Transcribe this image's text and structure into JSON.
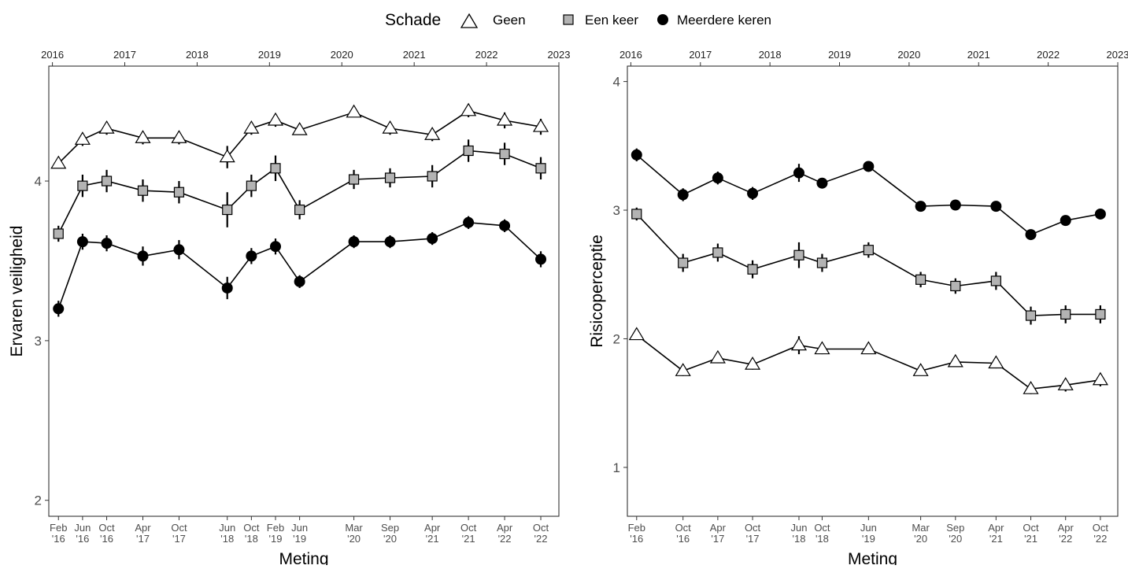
{
  "legend": {
    "title": "Schade",
    "items": [
      {
        "label": "Geen",
        "shape": "triangle"
      },
      {
        "label": "Een keer",
        "shape": "square"
      },
      {
        "label": "Meerdere keren",
        "shape": "circle"
      }
    ]
  },
  "colors": {
    "geen_fill": "#ffffff",
    "een_keer_fill": "#b3b3b3",
    "meerdere_fill": "#000000",
    "line": "#000000",
    "frame": "#333333",
    "tick_text": "#4d4d4d"
  },
  "chart_data": [
    {
      "type": "line",
      "xlabel": "Meting",
      "ylabel": "Ervaren veiligheid",
      "ylim": [
        1.9,
        4.72
      ],
      "yticks": [
        2,
        3,
        4
      ],
      "grid": false,
      "legend_position": "top",
      "top_axis": {
        "ticks": [
          "2016",
          "2017",
          "2018",
          "2019",
          "2020",
          "2021",
          "2022",
          "2023"
        ]
      },
      "categories": [
        "Feb '16",
        "Jun '16",
        "Oct '16",
        "Apr '17",
        "Oct '17",
        "Jun '18",
        "Oct '18",
        "Feb '19",
        "Jun '19",
        "Mar '20",
        "Sep '20",
        "Apr '21",
        "Oct '21",
        "Apr '22",
        "Oct '22"
      ],
      "x_dates": [
        "2016-02",
        "2016-06",
        "2016-10",
        "2017-04",
        "2017-10",
        "2018-06",
        "2018-10",
        "2019-02",
        "2019-06",
        "2020-03",
        "2020-09",
        "2021-04",
        "2021-10",
        "2022-04",
        "2022-10"
      ],
      "x_labels": [
        [
          "Feb",
          "'16"
        ],
        [
          "Jun",
          "'16"
        ],
        [
          "Oct",
          "'16"
        ],
        [
          "Apr",
          "'17"
        ],
        [
          "Oct",
          "'17"
        ],
        [
          "Jun",
          "'18"
        ],
        [
          "Oct",
          "'18"
        ],
        [
          "Feb",
          "'19"
        ],
        [
          "Jun",
          "'19"
        ],
        [
          "Mar",
          "'20"
        ],
        [
          "Sep",
          "'20"
        ],
        [
          "Apr",
          "'21"
        ],
        [
          "Oct",
          "'21"
        ],
        [
          "Apr",
          "'22"
        ],
        [
          "Oct",
          "'22"
        ]
      ],
      "series": [
        {
          "name": "Geen",
          "shape": "triangle",
          "values": [
            4.11,
            4.26,
            4.33,
            4.27,
            4.27,
            4.15,
            4.33,
            4.38,
            4.32,
            4.43,
            4.33,
            4.29,
            4.44,
            4.38,
            4.34
          ],
          "err": [
            0.03,
            0.04,
            0.04,
            0.04,
            0.04,
            0.07,
            0.04,
            0.04,
            0.03,
            0.03,
            0.04,
            0.04,
            0.04,
            0.05,
            0.05
          ]
        },
        {
          "name": "Een keer",
          "shape": "square",
          "values": [
            3.67,
            3.97,
            4.0,
            3.94,
            3.93,
            3.82,
            3.97,
            4.08,
            3.82,
            4.01,
            4.02,
            4.03,
            4.19,
            4.17,
            4.08
          ],
          "err": [
            0.05,
            0.07,
            0.07,
            0.07,
            0.07,
            0.11,
            0.07,
            0.08,
            0.06,
            0.06,
            0.06,
            0.07,
            0.07,
            0.07,
            0.07
          ]
        },
        {
          "name": "Meerdere keren",
          "shape": "circle",
          "values": [
            3.2,
            3.62,
            3.61,
            3.53,
            3.57,
            3.33,
            3.53,
            3.59,
            3.37,
            3.62,
            3.62,
            3.64,
            3.74,
            3.72,
            3.51
          ],
          "err": [
            0.05,
            0.05,
            0.05,
            0.06,
            0.06,
            0.07,
            0.05,
            0.05,
            0.04,
            0.04,
            0.04,
            0.04,
            0.04,
            0.04,
            0.05
          ]
        }
      ]
    },
    {
      "type": "line",
      "xlabel": "Meting",
      "ylabel": "Risicoperceptie",
      "ylim": [
        0.62,
        4.12
      ],
      "yticks": [
        1,
        2,
        3,
        4
      ],
      "grid": false,
      "legend_position": "top",
      "top_axis": {
        "ticks": [
          "2016",
          "2017",
          "2018",
          "2019",
          "2020",
          "2021",
          "2022",
          "2023"
        ]
      },
      "categories": [
        "Feb '16",
        "Oct '16",
        "Apr '17",
        "Oct '17",
        "Jun '18",
        "Oct '18",
        "Jun '19",
        "Mar '20",
        "Sep '20",
        "Apr '21",
        "Oct '21",
        "Apr '22",
        "Oct '22"
      ],
      "x_dates": [
        "2016-02",
        "2016-10",
        "2017-04",
        "2017-10",
        "2018-06",
        "2018-10",
        "2019-06",
        "2020-03",
        "2020-09",
        "2021-04",
        "2021-10",
        "2022-04",
        "2022-10"
      ],
      "x_labels": [
        [
          "Feb",
          "'16"
        ],
        [
          "Oct",
          "'16"
        ],
        [
          "Apr",
          "'17"
        ],
        [
          "Oct",
          "'17"
        ],
        [
          "Jun",
          "'18"
        ],
        [
          "Oct",
          "'18"
        ],
        [
          "Jun",
          "'19"
        ],
        [
          "Mar",
          "'20"
        ],
        [
          "Sep",
          "'20"
        ],
        [
          "Apr",
          "'21"
        ],
        [
          "Oct",
          "'21"
        ],
        [
          "Apr",
          "'22"
        ],
        [
          "Oct",
          "'22"
        ]
      ],
      "series": [
        {
          "name": "Geen",
          "shape": "triangle",
          "values": [
            2.03,
            1.75,
            1.85,
            1.8,
            1.95,
            1.92,
            1.92,
            1.75,
            1.82,
            1.81,
            1.61,
            1.64,
            1.68
          ],
          "err": [
            0.03,
            0.04,
            0.04,
            0.04,
            0.07,
            0.04,
            0.03,
            0.03,
            0.03,
            0.04,
            0.04,
            0.05,
            0.05
          ]
        },
        {
          "name": "Een keer",
          "shape": "square",
          "values": [
            2.97,
            2.59,
            2.67,
            2.54,
            2.65,
            2.59,
            2.69,
            2.46,
            2.41,
            2.45,
            2.18,
            2.19,
            2.19
          ],
          "err": [
            0.05,
            0.07,
            0.07,
            0.07,
            0.1,
            0.07,
            0.06,
            0.06,
            0.06,
            0.07,
            0.07,
            0.07,
            0.07
          ]
        },
        {
          "name": "Meerdere keren",
          "shape": "circle",
          "values": [
            3.43,
            3.12,
            3.25,
            3.13,
            3.29,
            3.21,
            3.34,
            3.03,
            3.04,
            3.03,
            2.81,
            2.92,
            2.97
          ],
          "err": [
            0.05,
            0.05,
            0.05,
            0.05,
            0.07,
            0.04,
            0.03,
            0.04,
            0.04,
            0.04,
            0.04,
            0.04,
            0.04
          ]
        }
      ]
    }
  ]
}
